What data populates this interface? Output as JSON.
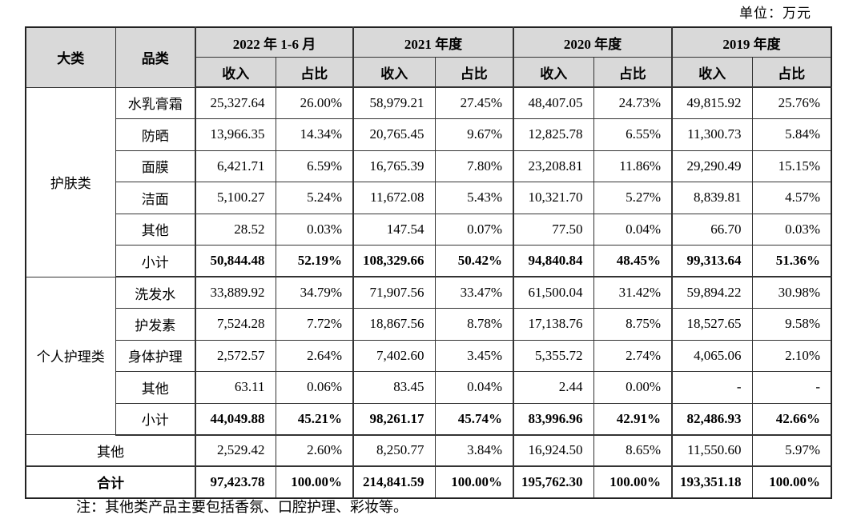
{
  "unit_label": "单位：万元",
  "note": "注：其他类产品主要包括香氛、口腔护理、彩妆等。",
  "colors": {
    "header_bg": "#d9d9d9",
    "border": "#333333",
    "text": "#000000"
  },
  "table": {
    "col_headers": {
      "category": "大类",
      "subcategory": "品类",
      "revenue": "收入",
      "share": "占比"
    },
    "periods": [
      "2022 年 1-6 月",
      "2021 年度",
      "2020 年度",
      "2019 年度"
    ],
    "groups": [
      {
        "category": "护肤类",
        "rows": [
          {
            "name": "水乳膏霜",
            "is_subtotal": false,
            "values": [
              "25,327.64",
              "26.00%",
              "58,979.21",
              "27.45%",
              "48,407.05",
              "24.73%",
              "49,815.92",
              "25.76%"
            ]
          },
          {
            "name": "防晒",
            "is_subtotal": false,
            "values": [
              "13,966.35",
              "14.34%",
              "20,765.45",
              "9.67%",
              "12,825.78",
              "6.55%",
              "11,300.73",
              "5.84%"
            ]
          },
          {
            "name": "面膜",
            "is_subtotal": false,
            "values": [
              "6,421.71",
              "6.59%",
              "16,765.39",
              "7.80%",
              "23,208.81",
              "11.86%",
              "29,290.49",
              "15.15%"
            ]
          },
          {
            "name": "洁面",
            "is_subtotal": false,
            "values": [
              "5,100.27",
              "5.24%",
              "11,672.08",
              "5.43%",
              "10,321.70",
              "5.27%",
              "8,839.81",
              "4.57%"
            ]
          },
          {
            "name": "其他",
            "is_subtotal": false,
            "values": [
              "28.52",
              "0.03%",
              "147.54",
              "0.07%",
              "77.50",
              "0.04%",
              "66.70",
              "0.03%"
            ]
          },
          {
            "name": "小计",
            "is_subtotal": true,
            "values": [
              "50,844.48",
              "52.19%",
              "108,329.66",
              "50.42%",
              "94,840.84",
              "48.45%",
              "99,313.64",
              "51.36%"
            ]
          }
        ]
      },
      {
        "category": "个人护理类",
        "rows": [
          {
            "name": "洗发水",
            "is_subtotal": false,
            "values": [
              "33,889.92",
              "34.79%",
              "71,907.56",
              "33.47%",
              "61,500.04",
              "31.42%",
              "59,894.22",
              "30.98%"
            ]
          },
          {
            "name": "护发素",
            "is_subtotal": false,
            "values": [
              "7,524.28",
              "7.72%",
              "18,867.56",
              "8.78%",
              "17,138.76",
              "8.75%",
              "18,527.65",
              "9.58%"
            ]
          },
          {
            "name": "身体护理",
            "is_subtotal": false,
            "values": [
              "2,572.57",
              "2.64%",
              "7,402.60",
              "3.45%",
              "5,355.72",
              "2.74%",
              "4,065.06",
              "2.10%"
            ]
          },
          {
            "name": "其他",
            "is_subtotal": false,
            "values": [
              "63.11",
              "0.06%",
              "83.45",
              "0.04%",
              "2.44",
              "0.00%",
              "-",
              "-"
            ]
          },
          {
            "name": "小计",
            "is_subtotal": true,
            "values": [
              "44,049.88",
              "45.21%",
              "98,261.17",
              "45.74%",
              "83,996.96",
              "42.91%",
              "82,486.93",
              "42.66%"
            ]
          }
        ]
      }
    ],
    "other_row": {
      "label": "其他",
      "values": [
        "2,529.42",
        "2.60%",
        "8,250.77",
        "3.84%",
        "16,924.50",
        "8.65%",
        "11,550.60",
        "5.97%"
      ]
    },
    "total_row": {
      "label": "合计",
      "values": [
        "97,423.78",
        "100.00%",
        "214,841.59",
        "100.00%",
        "195,762.30",
        "100.00%",
        "193,351.18",
        "100.00%"
      ]
    }
  }
}
